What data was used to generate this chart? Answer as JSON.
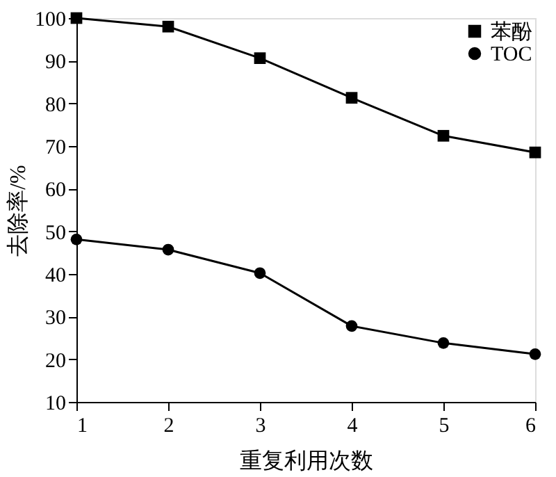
{
  "chart_data": {
    "type": "line",
    "xlabel": "重复利用次数",
    "ylabel": "去除率/%",
    "x": [
      1,
      2,
      3,
      4,
      5,
      6
    ],
    "series": [
      {
        "name": "苯酚",
        "color": "#000000",
        "marker": "square",
        "values": [
          100,
          98,
          90.6,
          81.3,
          72.4,
          68.5
        ]
      },
      {
        "name": "TOC",
        "color": "#000000",
        "marker": "circle",
        "values": [
          48.1,
          45.7,
          40.2,
          27.8,
          23.8,
          21.2
        ]
      }
    ],
    "xlim": [
      1,
      6
    ],
    "xticks": [
      1,
      2,
      3,
      4,
      5,
      6
    ],
    "ylim": [
      10,
      100
    ],
    "yticks": [
      10,
      20,
      30,
      40,
      50,
      60,
      70,
      80,
      90,
      100
    ],
    "grid": false,
    "legend": "top right",
    "line_style": "solid"
  }
}
